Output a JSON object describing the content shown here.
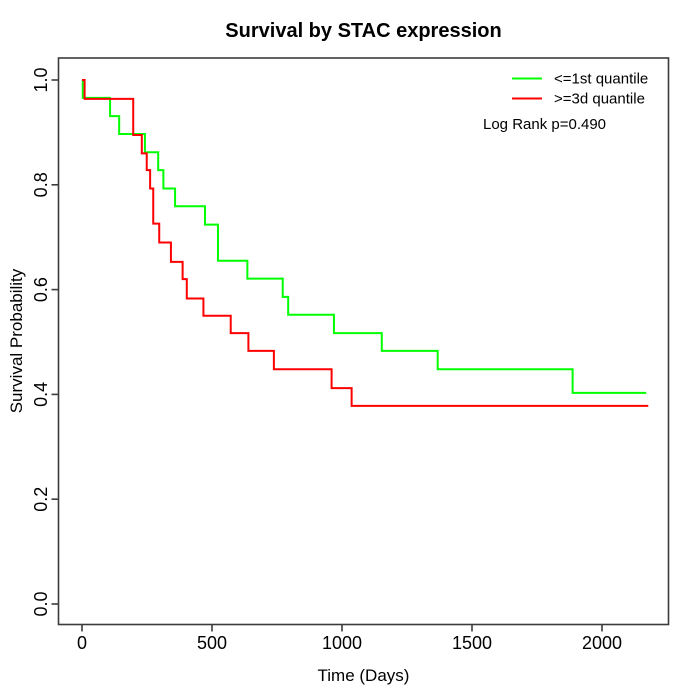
{
  "title": "Survival by STAC expression",
  "axes": {
    "x": {
      "label": "Time (Days)",
      "tick_labels": [
        "0",
        "500",
        "1000",
        "1500",
        "2000"
      ],
      "tick_values": [
        0,
        500,
        1000,
        1500,
        2000
      ]
    },
    "y": {
      "label": "Survival Probability",
      "tick_labels": [
        "0.0",
        "0.2",
        "0.4",
        "0.6",
        "0.8",
        "1.0"
      ],
      "tick_values": [
        0,
        0.2,
        0.4,
        0.6,
        0.8,
        1.0
      ]
    }
  },
  "legend": {
    "items": [
      {
        "label": "<=1st quantile",
        "color": "#00ff00"
      },
      {
        "label": ">=3d quantile",
        "color": "#ff0000"
      }
    ],
    "p_value_text": "Log Rank p=0.490"
  },
  "chart_data": {
    "type": "line",
    "subtype": "kaplan_meier_step",
    "title": "Survival by STAC expression",
    "xlabel": "Time (Days)",
    "ylabel": "Survival Probability",
    "xlim": [
      -90,
      2256
    ],
    "ylim": [
      -0.04,
      1.042
    ],
    "grid": false,
    "legend_position": "top-right",
    "annotation": "Log Rank p=0.490",
    "series": [
      {
        "name": "<=1st quantile",
        "color": "#00ff00",
        "start": [
          0,
          1.0
        ],
        "end_time": 2170,
        "steps": [
          [
            3,
            0.966
          ],
          [
            108,
            0.931
          ],
          [
            143,
            0.897
          ],
          [
            242,
            0.862
          ],
          [
            293,
            0.828
          ],
          [
            313,
            0.793
          ],
          [
            358,
            0.759
          ],
          [
            473,
            0.724
          ],
          [
            523,
            0.655
          ],
          [
            636,
            0.621
          ],
          [
            772,
            0.586
          ],
          [
            793,
            0.552
          ],
          [
            969,
            0.517
          ],
          [
            1153,
            0.483
          ],
          [
            1368,
            0.448
          ],
          [
            1887,
            0.403
          ]
        ]
      },
      {
        "name": ">=3d quantile",
        "color": "#ff0000",
        "start": [
          0,
          1.0
        ],
        "end_time": 2178,
        "steps": [
          [
            10,
            0.964
          ],
          [
            197,
            0.895
          ],
          [
            230,
            0.86
          ],
          [
            249,
            0.828
          ],
          [
            262,
            0.793
          ],
          [
            274,
            0.726
          ],
          [
            297,
            0.69
          ],
          [
            342,
            0.653
          ],
          [
            387,
            0.62
          ],
          [
            403,
            0.583
          ],
          [
            467,
            0.55
          ],
          [
            572,
            0.517
          ],
          [
            640,
            0.483
          ],
          [
            738,
            0.448
          ],
          [
            960,
            0.412
          ],
          [
            1037,
            0.378
          ]
        ]
      }
    ]
  }
}
